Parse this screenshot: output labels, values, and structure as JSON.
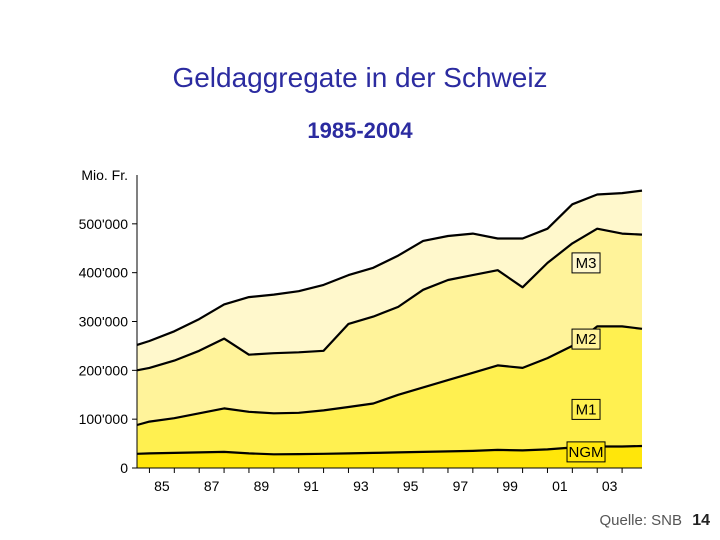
{
  "title": "Geldaggregate in der Schweiz",
  "subtitle": "1985-2004",
  "footer": {
    "source": "Quelle: SNB",
    "page": "14"
  },
  "colors": {
    "m3": "#fff8cc",
    "m2": "#fff39a",
    "m1": "#fff050",
    "ngm": "#ffe60a",
    "line": "#000000"
  },
  "chart_data": {
    "type": "area",
    "title": "Geldaggregate in der Schweiz",
    "subtitle": "1985-2004",
    "ylabel": "Mio. Fr.",
    "xlabel": "",
    "ylim": [
      0,
      600000
    ],
    "xlim": [
      1984.5,
      2004.8
    ],
    "yticks": [
      0,
      100000,
      200000,
      300000,
      400000,
      500000
    ],
    "ytick_labels": [
      "0",
      "100'000",
      "200'000",
      "300'000",
      "400'000",
      "500'000"
    ],
    "xticks": [
      1985,
      1987,
      1989,
      1991,
      1993,
      1995,
      1997,
      1999,
      2001,
      2003
    ],
    "xtick_labels": [
      "85",
      "87",
      "89",
      "91",
      "93",
      "95",
      "97",
      "99",
      "01",
      "03"
    ],
    "x": [
      1984.5,
      1985,
      1986,
      1987,
      1988,
      1989,
      1990,
      1991,
      1992,
      1993,
      1994,
      1995,
      1996,
      1997,
      1998,
      1999,
      2000,
      2001,
      2002,
      2003,
      2004,
      2004.8
    ],
    "series": [
      {
        "name": "M3",
        "label": "M3",
        "values": [
          252000,
          260000,
          280000,
          305000,
          335000,
          350000,
          355000,
          362000,
          375000,
          395000,
          410000,
          435000,
          465000,
          475000,
          480000,
          470000,
          470000,
          490000,
          540000,
          560000,
          563000,
          568000
        ]
      },
      {
        "name": "M2",
        "label": "M2",
        "values": [
          200000,
          205000,
          220000,
          240000,
          265000,
          232000,
          235000,
          237000,
          240000,
          295000,
          310000,
          330000,
          365000,
          385000,
          395000,
          405000,
          370000,
          420000,
          460000,
          490000,
          480000,
          478000
        ]
      },
      {
        "name": "M1",
        "label": "M1",
        "values": [
          88000,
          95000,
          102000,
          112000,
          122000,
          115000,
          112000,
          113000,
          118000,
          125000,
          132000,
          150000,
          165000,
          180000,
          195000,
          210000,
          205000,
          225000,
          250000,
          290000,
          290000,
          285000
        ]
      },
      {
        "name": "NGM",
        "label": "NGM",
        "values": [
          29000,
          30000,
          31000,
          32000,
          33000,
          30000,
          28000,
          28500,
          29000,
          30000,
          31000,
          32000,
          33000,
          34000,
          35000,
          37000,
          36000,
          38000,
          42000,
          44000,
          44000,
          45000
        ]
      }
    ]
  }
}
